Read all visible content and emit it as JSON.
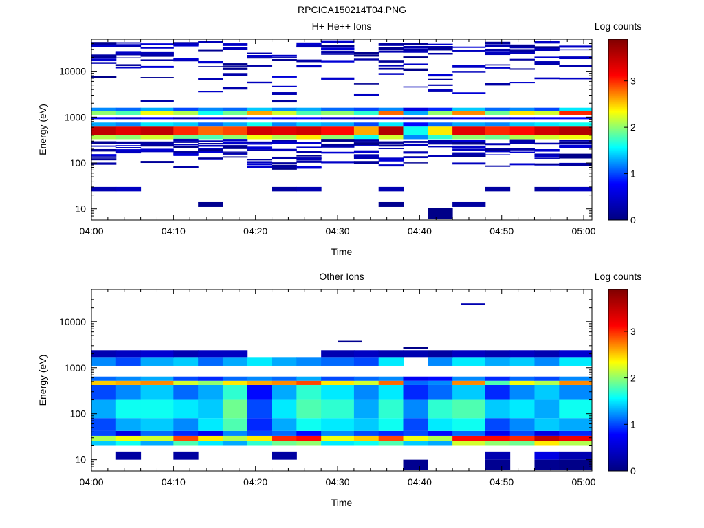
{
  "figure": {
    "title": "RPCICA150214T04.PNG"
  },
  "colors": {
    "colormap": [
      "#000080",
      "#0000ff",
      "#00ffff",
      "#ffff00",
      "#ff0000",
      "#800000"
    ],
    "axis": "#000000",
    "background": "#ffffff"
  },
  "chart_data": [
    {
      "type": "heatmap",
      "title": "H+ He++ Ions",
      "xlabel": "Time",
      "ylabel": "Energy (eV)",
      "x_ticks": [
        "04:00",
        "04:10",
        "04:20",
        "04:30",
        "04:40",
        "04:50",
        "05:00"
      ],
      "x_range": [
        "04:00",
        "05:01"
      ],
      "y_scale": "log",
      "y_range": [
        5.7,
        50000
      ],
      "y_ticks": [
        10,
        100,
        1000,
        10000
      ],
      "colorbar": {
        "label": "Log counts",
        "range": [
          0,
          3.9
        ],
        "ticks": [
          0,
          1,
          2,
          3
        ]
      },
      "time_bins": [
        "04:00",
        "04:03",
        "04:06",
        "04:10",
        "04:13",
        "04:16",
        "04:19",
        "04:22",
        "04:25",
        "04:28",
        "04:32",
        "04:35",
        "04:38",
        "04:41",
        "04:44",
        "04:48",
        "04:51",
        "04:54",
        "04:57"
      ],
      "bands": [
        {
          "e_low": 400,
          "e_high": 620,
          "values": [
            3.5,
            3.3,
            3.5,
            3.0,
            2.8,
            2.9,
            3.4,
            3.3,
            3.4,
            3.1,
            2.6,
            3.6,
            1.6,
            2.4,
            3.3,
            3.0,
            3.1,
            3.4,
            3.6
          ]
        },
        {
          "e_low": 330,
          "e_high": 400,
          "values": [
            2.1,
            2.0,
            2.2,
            1.9,
            1.8,
            2.0,
            2.3,
            2.1,
            2.4,
            2.0,
            1.6,
            2.2,
            1.2,
            1.7,
            2.0,
            1.9,
            2.1,
            2.2,
            2.3
          ]
        },
        {
          "e_low": 620,
          "e_high": 760,
          "values": [
            1.3,
            1.2,
            1.5,
            1.4,
            1.1,
            1.3,
            1.6,
            1.2,
            1.4,
            1.3,
            1.0,
            1.5,
            0.8,
            1.1,
            1.3,
            1.2,
            1.4,
            1.5,
            1.6
          ]
        },
        {
          "e_low": 1100,
          "e_high": 1380,
          "values": [
            2.0,
            1.8,
            2.3,
            2.1,
            1.6,
            1.9,
            2.6,
            2.2,
            1.8,
            2.0,
            1.7,
            2.8,
            1.3,
            2.0,
            2.7,
            1.9,
            2.4,
            2.2,
            3.0
          ]
        },
        {
          "e_low": 1380,
          "e_high": 1600,
          "values": [
            1.2,
            1.1,
            1.3,
            1.0,
            1.2,
            1.1,
            1.4,
            1.2,
            1.3,
            1.1,
            1.0,
            1.2,
            0.6,
            0.9,
            1.4,
            1.1,
            1.2,
            1.0,
            1.5
          ]
        },
        {
          "e_low": 900,
          "e_high": 1000,
          "values": [
            0.8,
            0.5,
            0.7,
            0.3,
            0.6,
            0.4,
            0.9,
            0.7,
            0.8,
            0.5,
            0.4,
            0.6,
            0.2,
            0.4,
            0.7,
            0.5,
            0.6,
            0.7,
            0.8
          ]
        },
        {
          "e_low": 24,
          "e_high": 30,
          "values": [
            0.3,
            0.4,
            0.0,
            0.0,
            0.0,
            0.0,
            0.0,
            0.2,
            0.3,
            0.0,
            0.0,
            0.3,
            0.0,
            0.0,
            0.0,
            0.2,
            0.0,
            0.2,
            0.4
          ]
        },
        {
          "e_low": 11,
          "e_high": 14,
          "values": [
            0.0,
            0.0,
            0.0,
            0.0,
            0.1,
            0.0,
            0.0,
            0.0,
            0.0,
            0.0,
            0.0,
            0.1,
            0.0,
            0.0,
            0.2,
            0.0,
            0.0,
            0.0,
            0.0
          ]
        },
        {
          "e_low": 6,
          "e_high": 10.5,
          "values": [
            0.0,
            0.0,
            0.0,
            0.0,
            0.0,
            0.0,
            0.0,
            0.0,
            0.0,
            0.0,
            0.0,
            0.0,
            0.0,
            0.05,
            0.0,
            0.0,
            0.0,
            0.0,
            0.0
          ]
        }
      ]
    },
    {
      "type": "heatmap",
      "title": "Other Ions",
      "xlabel": "Time",
      "ylabel": "Energy (eV)",
      "x_ticks": [
        "04:00",
        "04:10",
        "04:20",
        "04:30",
        "04:40",
        "04:50",
        "05:00"
      ],
      "x_range": [
        "04:00",
        "05:01"
      ],
      "y_scale": "log",
      "y_range": [
        5.7,
        50000
      ],
      "y_ticks": [
        10,
        100,
        1000,
        10000
      ],
      "colorbar": {
        "label": "Log counts",
        "range": [
          0,
          3.9
        ],
        "ticks": [
          0,
          1,
          2,
          3
        ]
      },
      "time_bins": [
        "04:00",
        "04:03",
        "04:06",
        "04:10",
        "04:13",
        "04:16",
        "04:19",
        "04:22",
        "04:25",
        "04:28",
        "04:32",
        "04:35",
        "04:38",
        "04:41",
        "04:44",
        "04:48",
        "04:51",
        "04:54",
        "04:57"
      ],
      "bands": [
        {
          "e_low": 25,
          "e_high": 33,
          "values": [
            2.1,
            2.3,
            2.2,
            2.9,
            2.4,
            2.1,
            2.4,
            3.0,
            3.1,
            2.3,
            2.5,
            2.9,
            2.3,
            2.1,
            3.1,
            3.1,
            3.0,
            3.5,
            3.2
          ]
        },
        {
          "e_low": 20,
          "e_high": 25,
          "values": [
            1.4,
            1.6,
            1.3,
            1.8,
            1.5,
            1.3,
            1.7,
            1.9,
            2.0,
            1.5,
            1.6,
            1.8,
            1.4,
            1.3,
            2.2,
            2.0,
            1.9,
            2.4,
            2.1
          ]
        },
        {
          "e_low": 33,
          "e_high": 42,
          "values": [
            1.0,
            0.6,
            1.1,
            0.9,
            0.7,
            1.2,
            1.0,
            1.1,
            0.8,
            1.2,
            1.0,
            0.9,
            1.0,
            0.8,
            1.1,
            0.7,
            1.0,
            0.6,
            0.9
          ]
        },
        {
          "e_low": 42,
          "e_high": 80,
          "values": [
            1.0,
            1.3,
            1.4,
            1.2,
            1.5,
            1.8,
            0.9,
            1.3,
            1.6,
            1.5,
            1.4,
            1.6,
            1.0,
            1.5,
            1.6,
            1.0,
            1.2,
            1.4,
            1.3
          ]
        },
        {
          "e_low": 80,
          "e_high": 200,
          "values": [
            1.3,
            1.6,
            1.6,
            1.5,
            1.4,
            1.9,
            1.0,
            1.5,
            1.8,
            1.7,
            1.3,
            1.7,
            1.2,
            1.7,
            1.8,
            1.4,
            1.5,
            1.3,
            1.6
          ]
        },
        {
          "e_low": 200,
          "e_high": 420,
          "values": [
            1.0,
            1.2,
            1.4,
            1.1,
            1.3,
            1.7,
            0.8,
            1.3,
            1.7,
            1.5,
            1.2,
            1.5,
            0.9,
            1.1,
            1.4,
            0.9,
            1.2,
            1.4,
            1.2
          ]
        },
        {
          "e_low": 420,
          "e_high": 520,
          "values": [
            2.5,
            2.6,
            2.7,
            2.2,
            2.0,
            2.4,
            2.6,
            2.7,
            2.9,
            2.4,
            2.2,
            2.8,
            1.1,
            1.2,
            2.7,
            1.8,
            2.3,
            2.1,
            2.7
          ]
        },
        {
          "e_low": 520,
          "e_high": 640,
          "values": [
            1.1,
            1.2,
            1.3,
            1.0,
            0.9,
            1.1,
            1.2,
            1.1,
            1.3,
            1.0,
            1.1,
            1.2,
            0.7,
            0.8,
            1.2,
            0.9,
            1.1,
            1.0,
            1.2
          ]
        },
        {
          "e_low": 1100,
          "e_high": 1700,
          "values": [
            1.2,
            1.0,
            1.3,
            1.4,
            1.1,
            1.3,
            1.5,
            1.3,
            1.2,
            1.1,
            1.0,
            1.5,
            0.0,
            1.2,
            1.5,
            1.3,
            1.4,
            1.2,
            1.5
          ]
        },
        {
          "e_low": 1700,
          "e_high": 2400,
          "values": [
            0.3,
            0.4,
            0.5,
            0.3,
            0.4,
            0.4,
            0.0,
            0.0,
            0.0,
            0.3,
            0.4,
            0.3,
            0.3,
            0.2,
            0.4,
            0.3,
            0.4,
            0.3,
            0.5
          ]
        },
        {
          "e_low": 10,
          "e_high": 15,
          "values": [
            0.0,
            0.2,
            0.0,
            0.2,
            0.0,
            0.0,
            0.0,
            0.2,
            0.0,
            0.0,
            0.0,
            0.0,
            0.0,
            0.0,
            0.0,
            0.3,
            0.0,
            0.6,
            0.3
          ]
        },
        {
          "e_low": 6,
          "e_high": 10,
          "values": [
            0.0,
            0.0,
            0.0,
            0.0,
            0.0,
            0.0,
            0.0,
            0.0,
            0.0,
            0.0,
            0.0,
            0.0,
            0.1,
            0.0,
            0.0,
            0.1,
            0.0,
            0.1,
            0.05
          ]
        }
      ],
      "events": [
        {
          "time": "04:45",
          "energy": 24000,
          "value": 0.3
        },
        {
          "time": "04:30",
          "energy": 3700,
          "value": 0.1
        },
        {
          "time": "04:38",
          "energy": 2700,
          "value": 0.05
        }
      ]
    }
  ]
}
